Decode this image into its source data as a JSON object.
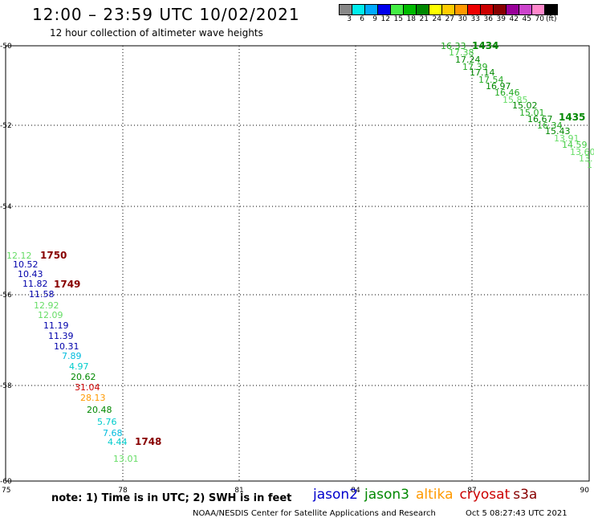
{
  "header": {
    "title": "12:00 – 23:59 UTC 10/02/2021",
    "subtitle": "12 hour collection of altimeter wave heights"
  },
  "legend": {
    "unit": "(ft)",
    "labels": [
      "3",
      "6",
      "9",
      "12",
      "15",
      "18",
      "21",
      "24",
      "27",
      "30",
      "33",
      "36",
      "39",
      "42",
      "45",
      "70"
    ],
    "colors": [
      "#888888",
      "#00eeee",
      "#00aaff",
      "#0000ee",
      "#44ee44",
      "#00bb00",
      "#008800",
      "#ffff00",
      "#ffcc00",
      "#ff9900",
      "#ee0000",
      "#cc0000",
      "#880000",
      "#990099",
      "#cc44cc",
      "#ff88cc",
      "#000000"
    ]
  },
  "axes": {
    "lon_labels": [
      "75",
      "78",
      "81",
      "84",
      "87",
      "90"
    ],
    "lat_labels": [
      "-50",
      "-52",
      "-54",
      "-56",
      "-58",
      "-60"
    ]
  },
  "tracks": [
    {
      "readings": [
        {
          "text": "16.33",
          "color": "#22aa22"
        },
        {
          "text": "17.38",
          "color": "#44cc44"
        },
        {
          "text": "17.24",
          "color": "#008800"
        },
        {
          "text": "17.39",
          "color": "#22aa22"
        },
        {
          "text": "17.14",
          "color": "#008800"
        },
        {
          "text": "17.54",
          "color": "#22aa22"
        },
        {
          "text": "16.97",
          "color": "#008800"
        },
        {
          "text": "16.46",
          "color": "#22aa22"
        },
        {
          "text": "15.85",
          "color": "#66dd66"
        },
        {
          "text": "15.02",
          "color": "#008800"
        },
        {
          "text": "15.01",
          "color": "#22aa22"
        },
        {
          "text": "16.67",
          "color": "#008800"
        },
        {
          "text": "16.34",
          "color": "#22aa22"
        },
        {
          "text": "15.43",
          "color": "#008800"
        },
        {
          "text": "13.91",
          "color": "#66dd66"
        },
        {
          "text": "14.59",
          "color": "#44cc44"
        },
        {
          "text": "13.60",
          "color": "#66dd66"
        },
        {
          "text": "13.",
          "color": "#66dd66"
        },
        {
          "text": "1",
          "color": "#66dd66"
        }
      ]
    },
    {
      "readings": [
        {
          "text": "12.12",
          "color": "#66dd66"
        },
        {
          "text": "10.52",
          "color": "#0000aa"
        },
        {
          "text": "10.43",
          "color": "#0000aa"
        },
        {
          "text": "11.82",
          "color": "#0000aa"
        },
        {
          "text": "11.58",
          "color": "#0000aa"
        },
        {
          "text": "12.92",
          "color": "#66dd66"
        },
        {
          "text": "12.09",
          "color": "#66dd66"
        },
        {
          "text": "11.19",
          "color": "#0000aa"
        },
        {
          "text": "11.39",
          "color": "#0000aa"
        },
        {
          "text": "10.31",
          "color": "#0000aa"
        },
        {
          "text": "7.89",
          "color": "#00bbdd"
        },
        {
          "text": "4.97",
          "color": "#00cccc"
        },
        {
          "text": "20.62",
          "color": "#008800"
        },
        {
          "text": "31.04",
          "color": "#cc0000"
        },
        {
          "text": "28.13",
          "color": "#ff9900"
        },
        {
          "text": "20.48",
          "color": "#008800"
        },
        {
          "text": "5.76",
          "color": "#00cccc"
        },
        {
          "text": "7.68",
          "color": "#00bbdd"
        },
        {
          "text": "4.44",
          "color": "#00cccc"
        },
        {
          "text": "13.01",
          "color": "#66dd66"
        }
      ]
    }
  ],
  "time_tags": [
    {
      "text": "1434",
      "color": "#008800"
    },
    {
      "text": "1435",
      "color": "#008800"
    },
    {
      "text": "1750",
      "color": "#880000"
    },
    {
      "text": "1749",
      "color": "#880000"
    },
    {
      "text": "1748",
      "color": "#880000"
    }
  ],
  "footer": {
    "note": "note: 1) Time is in UTC; 2) SWH is in feet",
    "satellites": [
      {
        "name": "jason2",
        "color": "#0000cc"
      },
      {
        "name": "jason3",
        "color": "#008800"
      },
      {
        "name": "altika",
        "color": "#ff9900"
      },
      {
        "name": "cryosat",
        "color": "#cc0000"
      },
      {
        "name": "s3a",
        "color": "#880000"
      }
    ],
    "credit": "NOAA/NESDIS Center for Satellite Applications and Research",
    "timestamp": "Oct  5 08:27:43 UTC 2021"
  }
}
